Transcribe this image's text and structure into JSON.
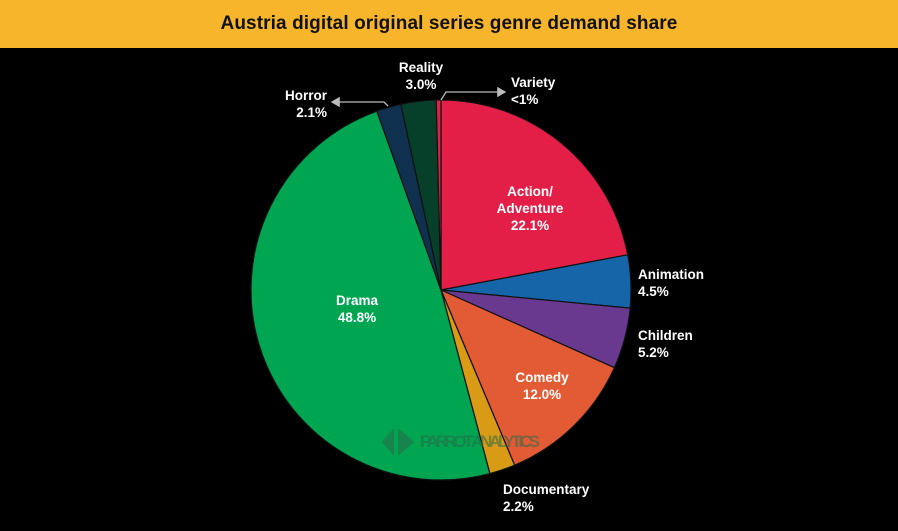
{
  "chart_data": {
    "type": "pie",
    "title": "Austria digital original series genre demand share",
    "slices": [
      {
        "name": "Action/\nAdventure",
        "value_label": "22.1%",
        "value": 22.1,
        "color": "#E31F48"
      },
      {
        "name": "Animation",
        "value_label": "4.5%",
        "value": 4.5,
        "color": "#1565A8"
      },
      {
        "name": "Children",
        "value_label": "5.2%",
        "value": 5.2,
        "color": "#68398E"
      },
      {
        "name": "Comedy",
        "value_label": "12.0%",
        "value": 12.0,
        "color": "#E35B34"
      },
      {
        "name": "Documentary",
        "value_label": "2.2%",
        "value": 2.2,
        "color": "#D99A16"
      },
      {
        "name": "Drama",
        "value_label": "48.8%",
        "value": 48.8,
        "color": "#00A551"
      },
      {
        "name": "Horror",
        "value_label": "2.1%",
        "value": 2.1,
        "color": "#10304F"
      },
      {
        "name": "Reality",
        "value_label": "3.0%",
        "value": 3.0,
        "color": "#063F2A"
      },
      {
        "name": "Variety",
        "value_label": "<1%",
        "value": 0.4,
        "color": "#E31F48"
      }
    ],
    "watermark": "PARROT ANALYTICS"
  },
  "colors": {
    "title_bar": "#F7B52C",
    "background": "#000000"
  }
}
